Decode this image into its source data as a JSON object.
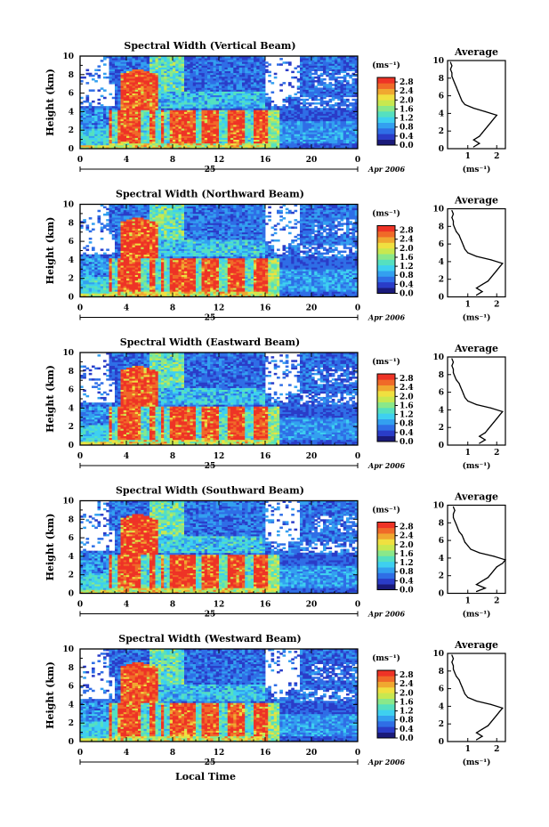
{
  "colors": {
    "colormap": [
      "#1a1a7a",
      "#2a3cc8",
      "#2f6ee6",
      "#33a0f0",
      "#3ed0f0",
      "#55e0c0",
      "#8ae88a",
      "#c8e850",
      "#f0e040",
      "#f0a830",
      "#f06a28",
      "#ee3326"
    ]
  },
  "chart_data": [
    {
      "type": "heatmap",
      "title": "Spectral Width (Vertical Beam)",
      "ylabel": "Height (km)",
      "ylim": [
        0,
        10
      ],
      "yticks": [
        "0",
        "2",
        "4",
        "6",
        "8",
        "10"
      ],
      "xlim": [
        0,
        24
      ],
      "xticks": [
        "0",
        "4",
        "8",
        "12",
        "16",
        "20",
        "0"
      ],
      "date_day": "25",
      "date_month": "Apr 2006",
      "colorbar": {
        "unit": "(ms⁻¹)",
        "ticks": [
          "0.0",
          "0.4",
          "0.8",
          "1.2",
          "1.6",
          "2.0",
          "2.4",
          "2.8"
        ],
        "range": [
          0,
          3.0
        ]
      },
      "average_profile": {
        "title": "Average",
        "xlabel": "(ms⁻¹)",
        "xticks": [
          "1",
          "2"
        ],
        "height_km": [
          0.2,
          0.6,
          1.0,
          1.4,
          1.8,
          2.2,
          2.6,
          3.0,
          3.4,
          3.8,
          4.2,
          4.6,
          5.0,
          5.4,
          5.8,
          6.2,
          6.6,
          7.0,
          7.4,
          7.8,
          8.2,
          8.6,
          9.0,
          9.4,
          9.8
        ],
        "width_ms": [
          1.2,
          1.4,
          1.2,
          1.4,
          1.5,
          1.6,
          1.7,
          1.8,
          1.9,
          2.0,
          1.6,
          1.2,
          0.9,
          0.8,
          0.75,
          0.7,
          0.65,
          0.6,
          0.55,
          0.5,
          0.45,
          0.45,
          0.4,
          0.45,
          0.4
        ]
      }
    },
    {
      "type": "heatmap",
      "title": "Spectral Width (Northward Beam)",
      "ylabel": "Height (km)",
      "ylim": [
        0,
        10
      ],
      "yticks": [
        "0",
        "2",
        "4",
        "6",
        "8",
        "10"
      ],
      "xlim": [
        0,
        24
      ],
      "xticks": [
        "0",
        "4",
        "8",
        "12",
        "16",
        "20",
        "0"
      ],
      "date_day": "25",
      "date_month": "Apr 2006",
      "colorbar": {
        "unit": "(ms⁻¹)",
        "ticks": [
          "0.0",
          "0.4",
          "0.8",
          "1.2",
          "1.6",
          "2.0",
          "2.4",
          "2.8"
        ],
        "range": [
          0,
          3.0
        ]
      },
      "average_profile": {
        "title": "Average",
        "xlabel": "(ms⁻¹)",
        "xticks": [
          "1",
          "2"
        ],
        "height_km": [
          0.2,
          0.6,
          1.0,
          1.4,
          1.8,
          2.2,
          2.6,
          3.0,
          3.4,
          3.8,
          4.2,
          4.6,
          5.0,
          5.4,
          5.8,
          6.2,
          6.6,
          7.0,
          7.4,
          7.8,
          8.2,
          8.6,
          9.0,
          9.4,
          9.8
        ],
        "width_ms": [
          1.3,
          1.5,
          1.3,
          1.5,
          1.7,
          1.8,
          1.9,
          2.0,
          2.1,
          2.2,
          1.8,
          1.3,
          1.0,
          0.9,
          0.85,
          0.8,
          0.75,
          0.7,
          0.6,
          0.55,
          0.5,
          0.5,
          0.45,
          0.5,
          0.45
        ]
      }
    },
    {
      "type": "heatmap",
      "title": "Spectral Width (Eastward Beam)",
      "ylabel": "Height (km)",
      "ylim": [
        0,
        10
      ],
      "yticks": [
        "0",
        "2",
        "4",
        "6",
        "8",
        "10"
      ],
      "xlim": [
        0,
        24
      ],
      "xticks": [
        "0",
        "4",
        "8",
        "12",
        "16",
        "20",
        "0"
      ],
      "date_day": "25",
      "date_month": "Apr 2006",
      "colorbar": {
        "unit": "(ms⁻¹)",
        "ticks": [
          "0.0",
          "0.4",
          "0.8",
          "1.2",
          "1.6",
          "2.0",
          "2.4",
          "2.8"
        ],
        "range": [
          0,
          3.0
        ]
      },
      "average_profile": {
        "title": "Average",
        "xlabel": "(ms⁻¹)",
        "xticks": [
          "1",
          "2"
        ],
        "height_km": [
          0.2,
          0.6,
          1.0,
          1.4,
          1.8,
          2.2,
          2.6,
          3.0,
          3.4,
          3.8,
          4.2,
          4.6,
          5.0,
          5.4,
          5.8,
          6.2,
          6.6,
          7.0,
          7.4,
          7.8,
          8.2,
          8.6,
          9.0,
          9.4,
          9.8
        ],
        "width_ms": [
          1.4,
          1.6,
          1.4,
          1.6,
          1.7,
          1.8,
          1.9,
          2.0,
          2.1,
          2.2,
          1.8,
          1.3,
          1.0,
          0.9,
          0.85,
          0.8,
          0.75,
          0.7,
          0.6,
          0.55,
          0.5,
          0.5,
          0.45,
          0.5,
          0.45
        ]
      }
    },
    {
      "type": "heatmap",
      "title": "Spectral Width (Southward Beam)",
      "ylabel": "Height (km)",
      "ylim": [
        0,
        10
      ],
      "yticks": [
        "0",
        "2",
        "4",
        "6",
        "8",
        "10"
      ],
      "xlim": [
        0,
        24
      ],
      "xticks": [
        "0",
        "4",
        "8",
        "12",
        "16",
        "20",
        "0"
      ],
      "date_day": "25",
      "date_month": "Apr 2006",
      "colorbar": {
        "unit": "(ms⁻¹)",
        "ticks": [
          "0.0",
          "0.4",
          "0.8",
          "1.2",
          "1.6",
          "2.0",
          "2.4",
          "2.8"
        ],
        "range": [
          0,
          3.0
        ]
      },
      "average_profile": {
        "title": "Average",
        "xlabel": "(ms⁻¹)",
        "xticks": [
          "1",
          "2"
        ],
        "height_km": [
          0.2,
          0.6,
          1.0,
          1.4,
          1.8,
          2.2,
          2.6,
          3.0,
          3.4,
          3.8,
          4.2,
          4.6,
          5.0,
          5.4,
          5.8,
          6.2,
          6.6,
          7.0,
          7.4,
          7.8,
          8.2,
          8.6,
          9.0,
          9.4,
          9.8
        ],
        "width_ms": [
          1.3,
          1.6,
          1.3,
          1.5,
          1.7,
          1.8,
          1.9,
          2.0,
          2.2,
          2.3,
          1.9,
          1.4,
          1.1,
          1.0,
          0.9,
          0.85,
          0.8,
          0.7,
          0.65,
          0.6,
          0.55,
          0.5,
          0.5,
          0.55,
          0.5
        ]
      }
    },
    {
      "type": "heatmap",
      "title": "Spectral Width (Westward Beam)",
      "ylabel": "Height (km)",
      "ylim": [
        0,
        10
      ],
      "yticks": [
        "0",
        "2",
        "4",
        "6",
        "8",
        "10"
      ],
      "xlim": [
        0,
        24
      ],
      "xticks": [
        "0",
        "4",
        "8",
        "12",
        "16",
        "20",
        "0"
      ],
      "date_day": "25",
      "date_month": "Apr 2006",
      "xlabel": "Local Time",
      "colorbar": {
        "unit": "(ms⁻¹)",
        "ticks": [
          "0.0",
          "0.4",
          "0.8",
          "1.2",
          "1.6",
          "2.0",
          "2.4",
          "2.8"
        ],
        "range": [
          0,
          3.0
        ]
      },
      "average_profile": {
        "title": "Average",
        "xlabel": "(ms⁻¹)",
        "xticks": [
          "1",
          "2"
        ],
        "height_km": [
          0.2,
          0.6,
          1.0,
          1.4,
          1.8,
          2.2,
          2.6,
          3.0,
          3.4,
          3.8,
          4.2,
          4.6,
          5.0,
          5.4,
          5.8,
          6.2,
          6.6,
          7.0,
          7.4,
          7.8,
          8.2,
          8.6,
          9.0,
          9.4,
          9.8
        ],
        "width_ms": [
          1.3,
          1.5,
          1.3,
          1.5,
          1.7,
          1.8,
          1.9,
          2.0,
          2.1,
          2.2,
          1.8,
          1.3,
          1.0,
          0.9,
          0.85,
          0.8,
          0.75,
          0.7,
          0.6,
          0.55,
          0.5,
          0.5,
          0.45,
          0.5,
          0.45
        ]
      }
    }
  ]
}
